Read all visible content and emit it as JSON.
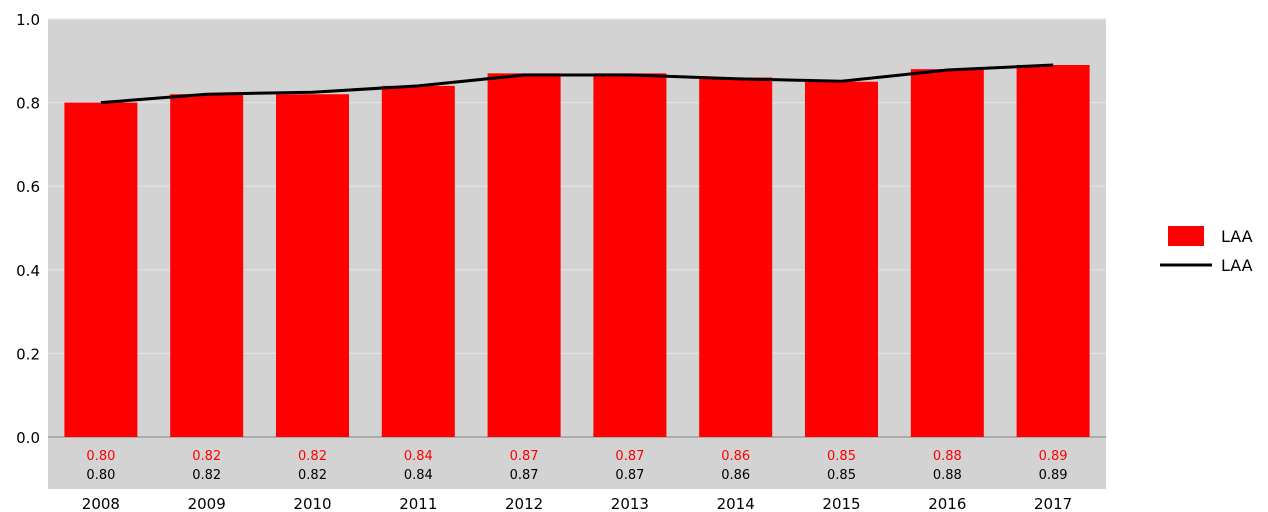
{
  "chart_data": {
    "type": "bar",
    "categories": [
      "2008",
      "2009",
      "2010",
      "2011",
      "2012",
      "2013",
      "2014",
      "2015",
      "2016",
      "2017"
    ],
    "series": [
      {
        "name": "LAA",
        "kind": "bar",
        "color": "#ff0000",
        "values": [
          0.8,
          0.82,
          0.82,
          0.84,
          0.87,
          0.87,
          0.86,
          0.85,
          0.88,
          0.89
        ],
        "labels": [
          "0.80",
          "0.82",
          "0.82",
          "0.84",
          "0.87",
          "0.87",
          "0.86",
          "0.85",
          "0.88",
          "0.89"
        ]
      },
      {
        "name": "LAA",
        "kind": "line",
        "color": "#000000",
        "values": [
          0.8,
          0.82,
          0.825,
          0.84,
          0.866,
          0.866,
          0.857,
          0.851,
          0.878,
          0.89
        ],
        "labels": [
          "0.80",
          "0.82",
          "0.82",
          "0.84",
          "0.87",
          "0.87",
          "0.86",
          "0.85",
          "0.88",
          "0.89"
        ]
      }
    ],
    "ylim": [
      0,
      1.0
    ],
    "yticks": [
      "0.0",
      "0.2",
      "0.4",
      "0.6",
      "0.8",
      "1.0"
    ],
    "ytick_values": [
      0,
      0.2,
      0.4,
      0.6,
      0.8,
      1.0
    ],
    "grid": true,
    "plot_background": "#d3d3d3",
    "legend_position": "right"
  }
}
